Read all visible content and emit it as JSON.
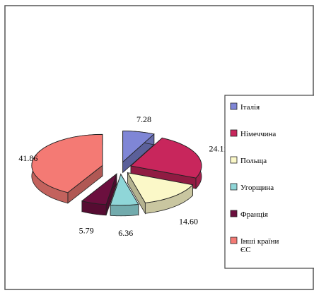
{
  "chart_data": {
    "type": "pie",
    "style": "3d-exploded",
    "title": "",
    "categories": [
      "Італія",
      "Німеччина",
      "Польща",
      "Угорщина",
      "Франція",
      "Інші країни ЄС"
    ],
    "values": [
      7.28,
      24.11,
      14.6,
      6.36,
      5.79,
      41.86
    ],
    "value_labels": [
      "7.28",
      "24.11",
      "14.60",
      "6.36",
      "5.79",
      "41.86"
    ],
    "legend_labels": [
      "Італія",
      "Німеччина",
      "Польща",
      "Угорщина",
      "Франція",
      "Інші країни ЄС"
    ],
    "colors": [
      "#7f86d6",
      "#c8265c",
      "#fbf8c8",
      "#8fd6d8",
      "#6b0f3e",
      "#f47a74"
    ],
    "legend_position": "right",
    "grid": false
  }
}
